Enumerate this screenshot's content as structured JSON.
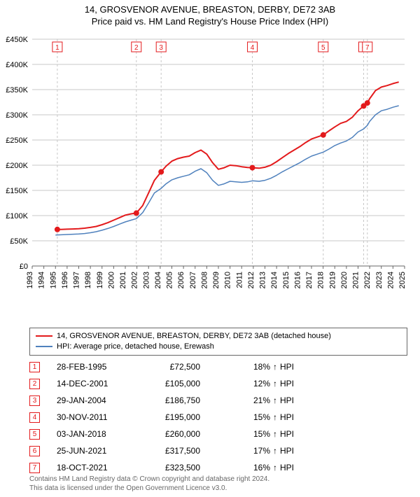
{
  "title": "14, GROSVENOR AVENUE, BREASTON, DERBY, DE72 3AB",
  "subtitle": "Price paid vs. HM Land Registry's House Price Index (HPI)",
  "chart": {
    "type": "line",
    "background_color": "#ffffff",
    "grid_color": "#c7c7c7",
    "axis_color": "#676767",
    "text_color": "#000000",
    "ylim": [
      0,
      450000
    ],
    "ytick_step": 50000,
    "ytick_labels": [
      "£0",
      "£50K",
      "£100K",
      "£150K",
      "£200K",
      "£250K",
      "£300K",
      "£350K",
      "£400K",
      "£450K"
    ],
    "xlim": [
      1993,
      2025
    ],
    "xtick_step": 1,
    "xtick_labels": [
      "1993",
      "1994",
      "1995",
      "1996",
      "1997",
      "1998",
      "1999",
      "2000",
      "2001",
      "2002",
      "2003",
      "2004",
      "2005",
      "2006",
      "2007",
      "2008",
      "2009",
      "2010",
      "2011",
      "2012",
      "2013",
      "2014",
      "2015",
      "2016",
      "2017",
      "2018",
      "2019",
      "2020",
      "2021",
      "2022",
      "2023",
      "2024",
      "2025"
    ],
    "series": {
      "price_paid": {
        "color": "#e31a1c",
        "line_width": 2,
        "x": [
          1995.16,
          1995.5,
          1996,
          1996.5,
          1997,
          1997.5,
          1998,
          1998.5,
          1999,
          1999.5,
          2000,
          2000.5,
          2001,
          2001.5,
          2001.95,
          2002.5,
          2003,
          2003.5,
          2004.08,
          2004.5,
          2005,
          2005.5,
          2006,
          2006.5,
          2007,
          2007.5,
          2008,
          2008.5,
          2009,
          2009.5,
          2010,
          2010.5,
          2011,
          2011.5,
          2011.92,
          2012.5,
          2013,
          2013.5,
          2014,
          2014.5,
          2015,
          2015.5,
          2016,
          2016.5,
          2017,
          2017.5,
          2018.01,
          2018.5,
          2019,
          2019.5,
          2020,
          2020.5,
          2021,
          2021.48,
          2021.8,
          2022,
          2022.5,
          2023,
          2023.5,
          2024,
          2024.5
        ],
        "y": [
          72500,
          72700,
          73000,
          73500,
          74000,
          75000,
          76500,
          78500,
          82000,
          86000,
          91000,
          96000,
          101000,
          103500,
          105000,
          120000,
          145000,
          170000,
          186750,
          198000,
          208000,
          213000,
          216000,
          218000,
          225000,
          230000,
          222000,
          205000,
          192000,
          195000,
          200000,
          199000,
          197000,
          195500,
          195000,
          194000,
          196000,
          200000,
          207000,
          215000,
          223000,
          230000,
          237000,
          245000,
          252000,
          256000,
          260000,
          268000,
          276000,
          283000,
          287000,
          295000,
          308000,
          317500,
          323500,
          332000,
          348000,
          355000,
          358000,
          362000,
          365000
        ]
      },
      "hpi": {
        "color": "#4f81bd",
        "line_width": 1.5,
        "x": [
          1995.0,
          1995.5,
          1996,
          1996.5,
          1997,
          1997.5,
          1998,
          1998.5,
          1999,
          1999.5,
          2000,
          2000.5,
          2001,
          2001.5,
          2001.95,
          2002.5,
          2003,
          2003.5,
          2004.08,
          2004.5,
          2005,
          2005.5,
          2006,
          2006.5,
          2007,
          2007.5,
          2008,
          2008.5,
          2009,
          2009.5,
          2010,
          2010.5,
          2011,
          2011.5,
          2011.92,
          2012.5,
          2013,
          2013.5,
          2014,
          2014.5,
          2015,
          2015.5,
          2016,
          2016.5,
          2017,
          2017.5,
          2018.01,
          2018.5,
          2019,
          2019.5,
          2020,
          2020.5,
          2021,
          2021.48,
          2021.8,
          2022,
          2022.5,
          2023,
          2023.5,
          2024,
          2024.5
        ],
        "y": [
          61500,
          62000,
          62500,
          63000,
          63500,
          64500,
          66000,
          68000,
          71000,
          74500,
          78500,
          83000,
          87500,
          91000,
          94000,
          106000,
          125000,
          145000,
          154000,
          163000,
          171000,
          175000,
          178000,
          181000,
          188000,
          193000,
          185000,
          170000,
          160000,
          163000,
          168000,
          167000,
          166000,
          167000,
          169000,
          168000,
          170000,
          174000,
          180000,
          187000,
          193000,
          199000,
          205000,
          212000,
          218000,
          222000,
          226000,
          232000,
          239000,
          244000,
          248000,
          255000,
          266000,
          272000,
          279000,
          287000,
          300000,
          308000,
          311000,
          315000,
          318000
        ]
      }
    },
    "markers": {
      "color": "#e31a1c",
      "radius": 4,
      "points": [
        {
          "n": 1,
          "x": 1995.16,
          "y": 72500
        },
        {
          "n": 2,
          "x": 2001.95,
          "y": 105000
        },
        {
          "n": 3,
          "x": 2004.08,
          "y": 186750
        },
        {
          "n": 4,
          "x": 2011.92,
          "y": 195000
        },
        {
          "n": 5,
          "x": 2018.01,
          "y": 260000
        },
        {
          "n": 6,
          "x": 2021.48,
          "y": 317500
        },
        {
          "n": 7,
          "x": 2021.8,
          "y": 323500
        }
      ]
    },
    "vlines_color": "#c7c7c7"
  },
  "legend": {
    "items": [
      {
        "color": "#e31a1c",
        "label": "14, GROSVENOR AVENUE, BREASTON, DERBY, DE72 3AB (detached house)"
      },
      {
        "color": "#4f81bd",
        "label": "HPI: Average price, detached house, Erewash"
      }
    ]
  },
  "sales": [
    {
      "n": "1",
      "date": "28-FEB-1995",
      "price": "£72,500",
      "pct": "18%",
      "arrow": "↑",
      "suffix": "HPI",
      "color": "#e31a1c"
    },
    {
      "n": "2",
      "date": "14-DEC-2001",
      "price": "£105,000",
      "pct": "12%",
      "arrow": "↑",
      "suffix": "HPI",
      "color": "#e31a1c"
    },
    {
      "n": "3",
      "date": "29-JAN-2004",
      "price": "£186,750",
      "pct": "21%",
      "arrow": "↑",
      "suffix": "HPI",
      "color": "#e31a1c"
    },
    {
      "n": "4",
      "date": "30-NOV-2011",
      "price": "£195,000",
      "pct": "15%",
      "arrow": "↑",
      "suffix": "HPI",
      "color": "#e31a1c"
    },
    {
      "n": "5",
      "date": "03-JAN-2018",
      "price": "£260,000",
      "pct": "15%",
      "arrow": "↑",
      "suffix": "HPI",
      "color": "#e31a1c"
    },
    {
      "n": "6",
      "date": "25-JUN-2021",
      "price": "£317,500",
      "pct": "17%",
      "arrow": "↑",
      "suffix": "HPI",
      "color": "#e31a1c"
    },
    {
      "n": "7",
      "date": "18-OCT-2021",
      "price": "£323,500",
      "pct": "16%",
      "arrow": "↑",
      "suffix": "HPI",
      "color": "#e31a1c"
    }
  ],
  "footer": {
    "line1": "Contains HM Land Registry data © Crown copyright and database right 2024.",
    "line2": "This data is licensed under the Open Government Licence v3.0."
  }
}
